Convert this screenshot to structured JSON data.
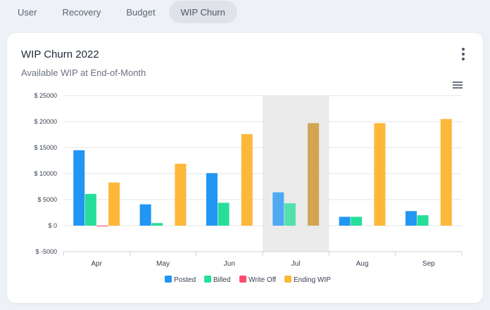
{
  "tabs": [
    {
      "label": "User",
      "active": false
    },
    {
      "label": "Recovery",
      "active": false
    },
    {
      "label": "Budget",
      "active": false
    },
    {
      "label": "WIP Churn",
      "active": true
    }
  ],
  "card": {
    "title": "WIP Churn 2022",
    "subtitle": "Available WIP at End-of-Month",
    "menu_icon": "more-vertical-icon",
    "export_icon": "hamburger-menu-icon"
  },
  "colors": {
    "posted": "#2196f3",
    "billed": "#26de9a",
    "write_off": "#ff4d6d",
    "ending_wip": "#fdb83a",
    "highlight_band": "#ebebeb"
  },
  "chart_data": {
    "type": "bar",
    "categories": [
      "Apr",
      "May",
      "Jun",
      "Jul",
      "Aug",
      "Sep"
    ],
    "series": [
      {
        "name": "Posted",
        "values": [
          14500,
          4100,
          10100,
          6400,
          1700,
          2800
        ]
      },
      {
        "name": "Billed",
        "values": [
          6100,
          500,
          4400,
          4300,
          1700,
          2000
        ]
      },
      {
        "name": "Write Off",
        "values": [
          -150,
          0,
          0,
          0,
          0,
          0
        ]
      },
      {
        "name": "Ending WIP",
        "values": [
          8300,
          11900,
          17600,
          19700,
          19700,
          20500
        ]
      }
    ],
    "y_ticks": [
      "$ 25000",
      "$ 20000",
      "$ 15000",
      "$ 10000",
      "$ 5000",
      "$ 0",
      "$ -5000"
    ],
    "ylim": [
      -5000,
      25000
    ],
    "highlighted_category": "Jul",
    "grid": true,
    "legend_position": "bottom"
  }
}
